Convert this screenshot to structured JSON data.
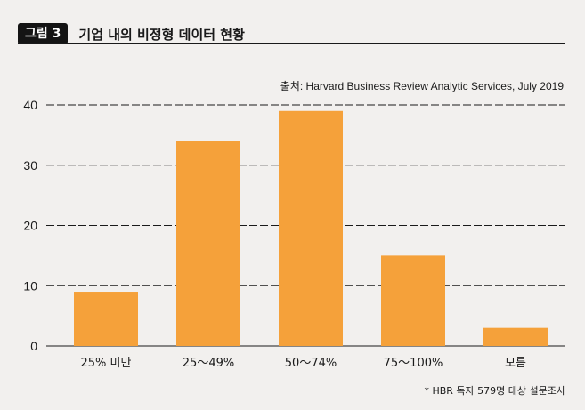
{
  "header": {
    "figure_label": "그림 3",
    "title": "기업 내의 비정형 데이터 현황"
  },
  "source": "출처: Harvard Business Review Analytic Services, July 2019",
  "footnote": "* HBR 독자 579명 대상 설문조사",
  "colors": {
    "background": "#f2f0ee",
    "bar": "#f5a13a",
    "grid": "#1a1a1a"
  },
  "chart_data": {
    "type": "bar",
    "categories": [
      "25% 미만",
      "25～49%",
      "50～74%",
      "75～100%",
      "모름"
    ],
    "values": [
      9,
      34,
      39,
      15,
      3
    ],
    "yticks": [
      "0",
      "10",
      "20",
      "30",
      "40"
    ],
    "ylim": [
      0,
      40
    ],
    "grid": "dashed horizontal",
    "title": "",
    "xlabel": "",
    "ylabel": ""
  }
}
